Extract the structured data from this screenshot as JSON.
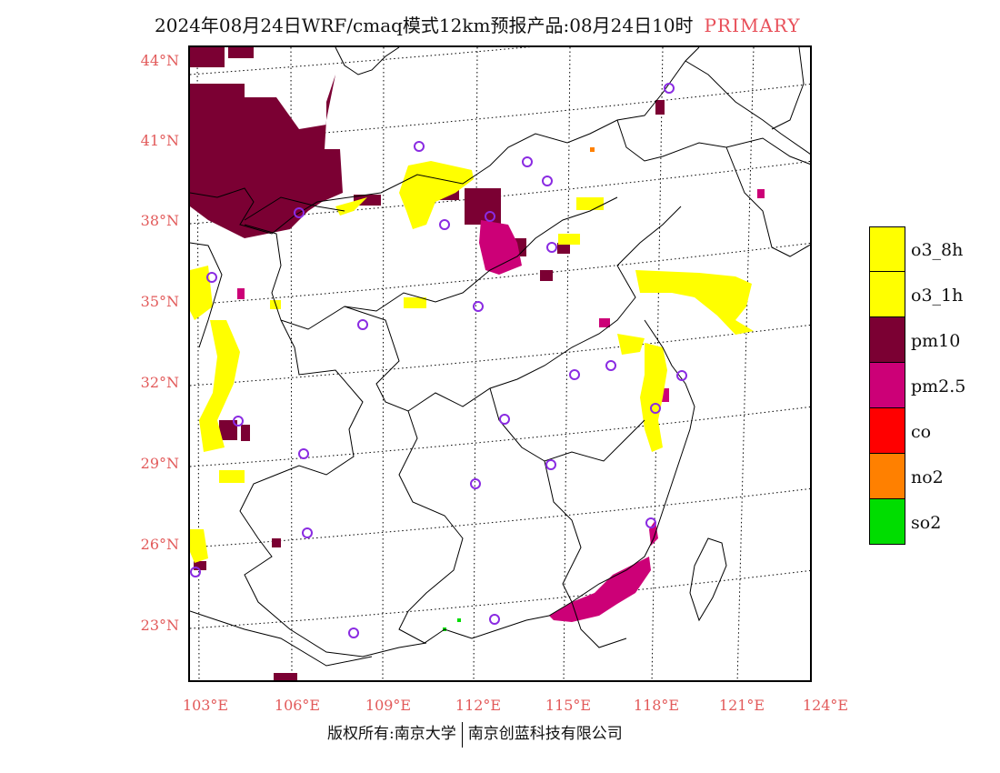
{
  "header": {
    "title": "2024年08月24日WRF/cmaq模式12km预报产品:08月24日10时",
    "tag": "PRIMARY"
  },
  "colors": {
    "o3_8h": "#ffff00",
    "o3_1h": "#ffff00",
    "pm10": "#7b0033",
    "pm25": "#cc0077",
    "co": "#ff0000",
    "no2": "#ff8000",
    "so2": "#00dd00",
    "axis_label": "#e25a5a",
    "station_marker": "#8a2be2"
  },
  "axes": {
    "lat_labels": [
      "44°N",
      "41°N",
      "38°N",
      "35°N",
      "32°N",
      "29°N",
      "26°N",
      "23°N"
    ],
    "lon_labels": [
      "103°E",
      "106°E",
      "109°E",
      "112°E",
      "115°E",
      "118°E",
      "121°E",
      "124°E"
    ]
  },
  "legend": {
    "items": [
      {
        "label": "o3_8h",
        "color": "#ffff00"
      },
      {
        "label": "o3_1h",
        "color": "#ffff00"
      },
      {
        "label": "pm10",
        "color": "#7b0033"
      },
      {
        "label": "pm2.5",
        "color": "#cc0077"
      },
      {
        "label": "co",
        "color": "#ff0000"
      },
      {
        "label": "no2",
        "color": "#ff8000"
      },
      {
        "label": "so2",
        "color": "#00dd00"
      }
    ]
  },
  "footer": {
    "left": "版权所有:南京大学",
    "right": "南京创蓝科技有限公司"
  }
}
